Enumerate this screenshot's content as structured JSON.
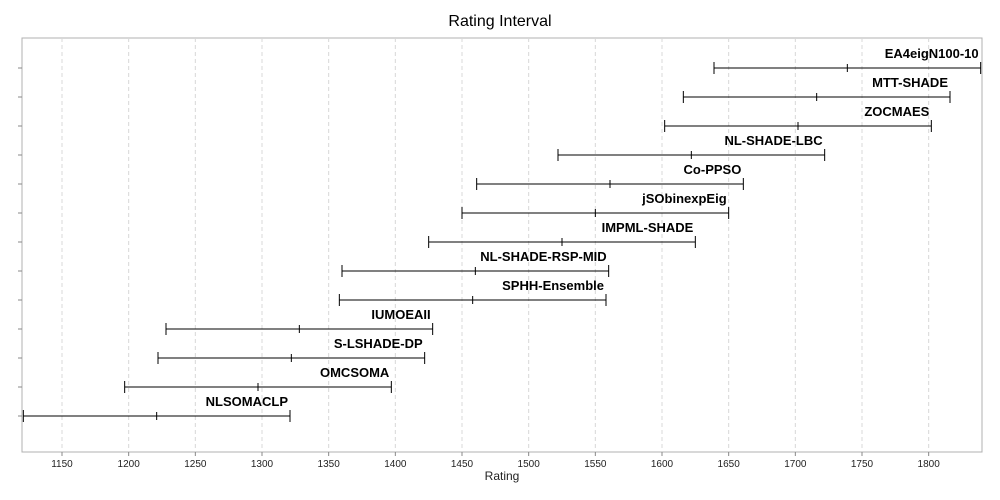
{
  "chart_data": {
    "type": "interval",
    "title": "Rating Interval",
    "xlabel": "Rating",
    "ylabel": "",
    "xlim": [
      1120,
      1840
    ],
    "xticks": [
      1150,
      1200,
      1250,
      1300,
      1350,
      1400,
      1450,
      1500,
      1550,
      1600,
      1650,
      1700,
      1750,
      1800
    ],
    "grid": "vertical-dashed",
    "intervals": [
      {
        "name": "EA4eigN100-10",
        "low": 1639,
        "mid": 1739,
        "high": 1839
      },
      {
        "name": "MTT-SHADE",
        "low": 1616,
        "mid": 1716,
        "high": 1816
      },
      {
        "name": "ZOCMAES",
        "low": 1602,
        "mid": 1702,
        "high": 1802
      },
      {
        "name": "NL-SHADE-LBC",
        "low": 1522,
        "mid": 1622,
        "high": 1722
      },
      {
        "name": "Co-PPSO",
        "low": 1461,
        "mid": 1561,
        "high": 1661
      },
      {
        "name": "jSObinexpEig",
        "low": 1450,
        "mid": 1550,
        "high": 1650
      },
      {
        "name": "IMPML-SHADE",
        "low": 1425,
        "mid": 1525,
        "high": 1625
      },
      {
        "name": "NL-SHADE-RSP-MID",
        "low": 1360,
        "mid": 1460,
        "high": 1560
      },
      {
        "name": "SPHH-Ensemble",
        "low": 1358,
        "mid": 1458,
        "high": 1558
      },
      {
        "name": "IUMOEAII",
        "low": 1228,
        "mid": 1328,
        "high": 1428
      },
      {
        "name": "S-LSHADE-DP",
        "low": 1222,
        "mid": 1322,
        "high": 1422
      },
      {
        "name": "OMCSOMA",
        "low": 1197,
        "mid": 1297,
        "high": 1397
      },
      {
        "name": "NLSOMACLP",
        "low": 1121,
        "mid": 1221,
        "high": 1321
      }
    ]
  }
}
